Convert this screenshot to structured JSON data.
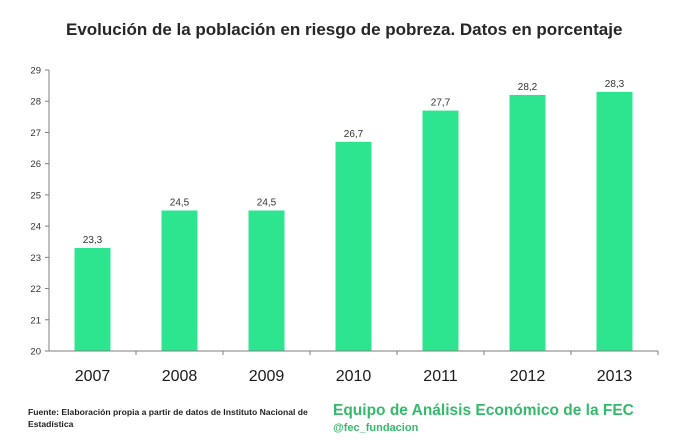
{
  "chart_data": {
    "type": "bar",
    "title": "Evolución de la población en riesgo de pobreza. Datos en porcentaje",
    "categories": [
      "2007",
      "2008",
      "2009",
      "2010",
      "2011",
      "2012",
      "2013"
    ],
    "values": [
      23.3,
      24.5,
      24.5,
      26.7,
      27.7,
      28.2,
      28.3
    ],
    "value_labels": [
      "23,3",
      "24,5",
      "24,5",
      "26,7",
      "27,7",
      "28,2",
      "28,3"
    ],
    "ylim": [
      20,
      29
    ],
    "yticks": [
      "20",
      "21",
      "22",
      "23",
      "24",
      "25",
      "26",
      "27",
      "28",
      "29"
    ],
    "xlabel": "",
    "ylabel": "",
    "grid": false,
    "bar_color": "#2ee58f"
  },
  "footer": {
    "source": "Fuente: Elaboración propia a partir de datos de Instituto Nacional de Estadística",
    "brand": "Equipo de Análisis Económico de la FEC",
    "handle": "@fec_fundacion"
  },
  "colors": {
    "brand_green": "#35b96b",
    "axis": "#7f7f7f"
  }
}
